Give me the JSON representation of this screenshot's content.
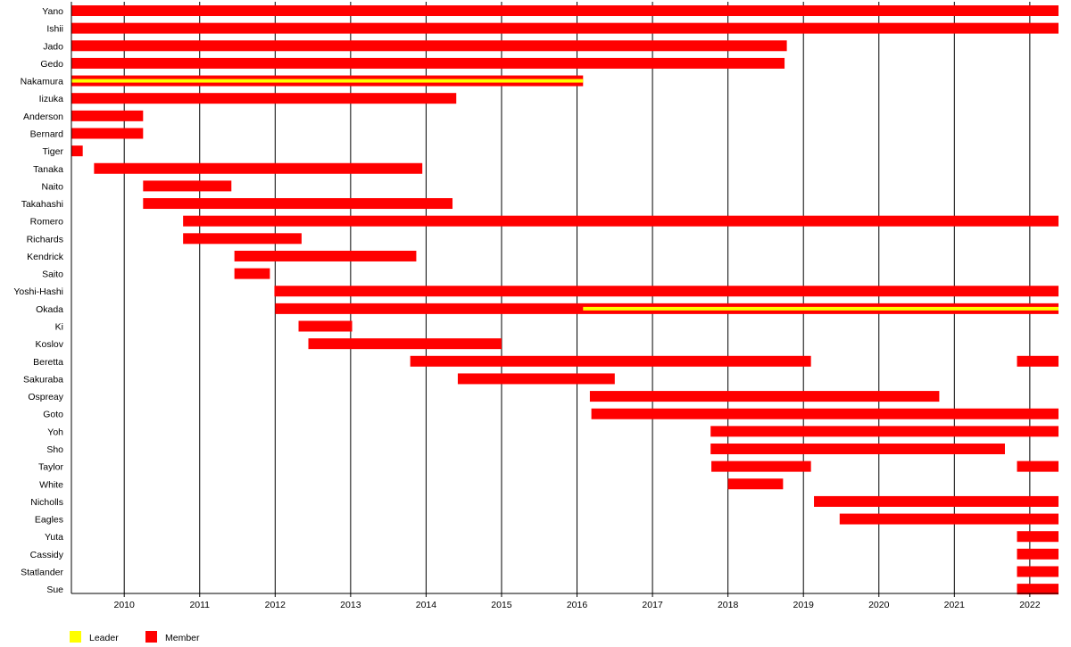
{
  "chart_data": {
    "type": "timeline",
    "title": "",
    "xlabel": "",
    "ylabel": "",
    "xlim": [
      2009.3,
      2022.38
    ],
    "x_ticks": [
      2010,
      2011,
      2012,
      2013,
      2014,
      2015,
      2016,
      2017,
      2018,
      2019,
      2020,
      2021,
      2022
    ],
    "grid": "vertical",
    "legend_position": "bottom-left",
    "legend": [
      {
        "label": "Leader",
        "color": "#ffff00"
      },
      {
        "label": "Member",
        "color": "#ff0000"
      }
    ],
    "colors": {
      "member": "#ff0000",
      "leader": "#ffff00"
    },
    "members": [
      {
        "name": "Yano",
        "spans": [
          [
            2009.3,
            2022.38
          ]
        ]
      },
      {
        "name": "Ishii",
        "spans": [
          [
            2009.3,
            2022.38
          ]
        ]
      },
      {
        "name": "Jado",
        "spans": [
          [
            2009.3,
            2018.78
          ]
        ]
      },
      {
        "name": "Gedo",
        "spans": [
          [
            2009.3,
            2018.75
          ]
        ]
      },
      {
        "name": "Nakamura",
        "spans": [
          [
            2009.3,
            2016.08
          ]
        ],
        "leader": [
          [
            2009.3,
            2016.08
          ]
        ]
      },
      {
        "name": "Iizuka",
        "spans": [
          [
            2009.3,
            2014.4
          ]
        ]
      },
      {
        "name": "Anderson",
        "spans": [
          [
            2009.3,
            2010.25
          ]
        ]
      },
      {
        "name": "Bernard",
        "spans": [
          [
            2009.3,
            2010.25
          ]
        ]
      },
      {
        "name": "Tiger",
        "spans": [
          [
            2009.3,
            2009.45
          ]
        ]
      },
      {
        "name": "Tanaka",
        "spans": [
          [
            2009.6,
            2013.95
          ]
        ]
      },
      {
        "name": "Naito",
        "spans": [
          [
            2010.25,
            2011.42
          ]
        ]
      },
      {
        "name": "Takahashi",
        "spans": [
          [
            2010.25,
            2014.35
          ]
        ]
      },
      {
        "name": "Romero",
        "spans": [
          [
            2010.78,
            2022.38
          ]
        ]
      },
      {
        "name": "Richards",
        "spans": [
          [
            2010.78,
            2012.35
          ]
        ]
      },
      {
        "name": "Kendrick",
        "spans": [
          [
            2011.46,
            2013.87
          ]
        ]
      },
      {
        "name": "Saito",
        "spans": [
          [
            2011.46,
            2011.93
          ]
        ]
      },
      {
        "name": "Yoshi-Hashi",
        "spans": [
          [
            2011.99,
            2022.38
          ]
        ]
      },
      {
        "name": "Okada",
        "spans": [
          [
            2012.0,
            2022.38
          ]
        ],
        "leader": [
          [
            2016.08,
            2022.38
          ]
        ]
      },
      {
        "name": "Ki",
        "spans": [
          [
            2012.31,
            2013.02
          ]
        ]
      },
      {
        "name": "Koslov",
        "spans": [
          [
            2012.44,
            2015.0
          ]
        ]
      },
      {
        "name": "Beretta",
        "spans": [
          [
            2013.79,
            2019.1
          ],
          [
            2021.83,
            2022.38
          ]
        ]
      },
      {
        "name": "Sakuraba",
        "spans": [
          [
            2014.42,
            2016.5
          ]
        ]
      },
      {
        "name": "Ospreay",
        "spans": [
          [
            2016.17,
            2020.8
          ]
        ]
      },
      {
        "name": "Goto",
        "spans": [
          [
            2016.19,
            2022.38
          ]
        ]
      },
      {
        "name": "Yoh",
        "spans": [
          [
            2017.77,
            2022.38
          ]
        ]
      },
      {
        "name": "Sho",
        "spans": [
          [
            2017.77,
            2021.67
          ]
        ]
      },
      {
        "name": "Taylor",
        "spans": [
          [
            2017.78,
            2019.1
          ],
          [
            2021.83,
            2022.38
          ]
        ]
      },
      {
        "name": "White",
        "spans": [
          [
            2018.0,
            2018.73
          ]
        ]
      },
      {
        "name": "Nicholls",
        "spans": [
          [
            2019.14,
            2022.38
          ]
        ]
      },
      {
        "name": "Eagles",
        "spans": [
          [
            2019.48,
            2022.38
          ]
        ]
      },
      {
        "name": "Yuta",
        "spans": [
          [
            2021.83,
            2022.38
          ]
        ]
      },
      {
        "name": "Cassidy",
        "spans": [
          [
            2021.83,
            2022.38
          ]
        ]
      },
      {
        "name": "Statlander",
        "spans": [
          [
            2021.83,
            2022.38
          ]
        ]
      },
      {
        "name": "Sue",
        "spans": [
          [
            2021.83,
            2022.38
          ]
        ]
      }
    ]
  }
}
